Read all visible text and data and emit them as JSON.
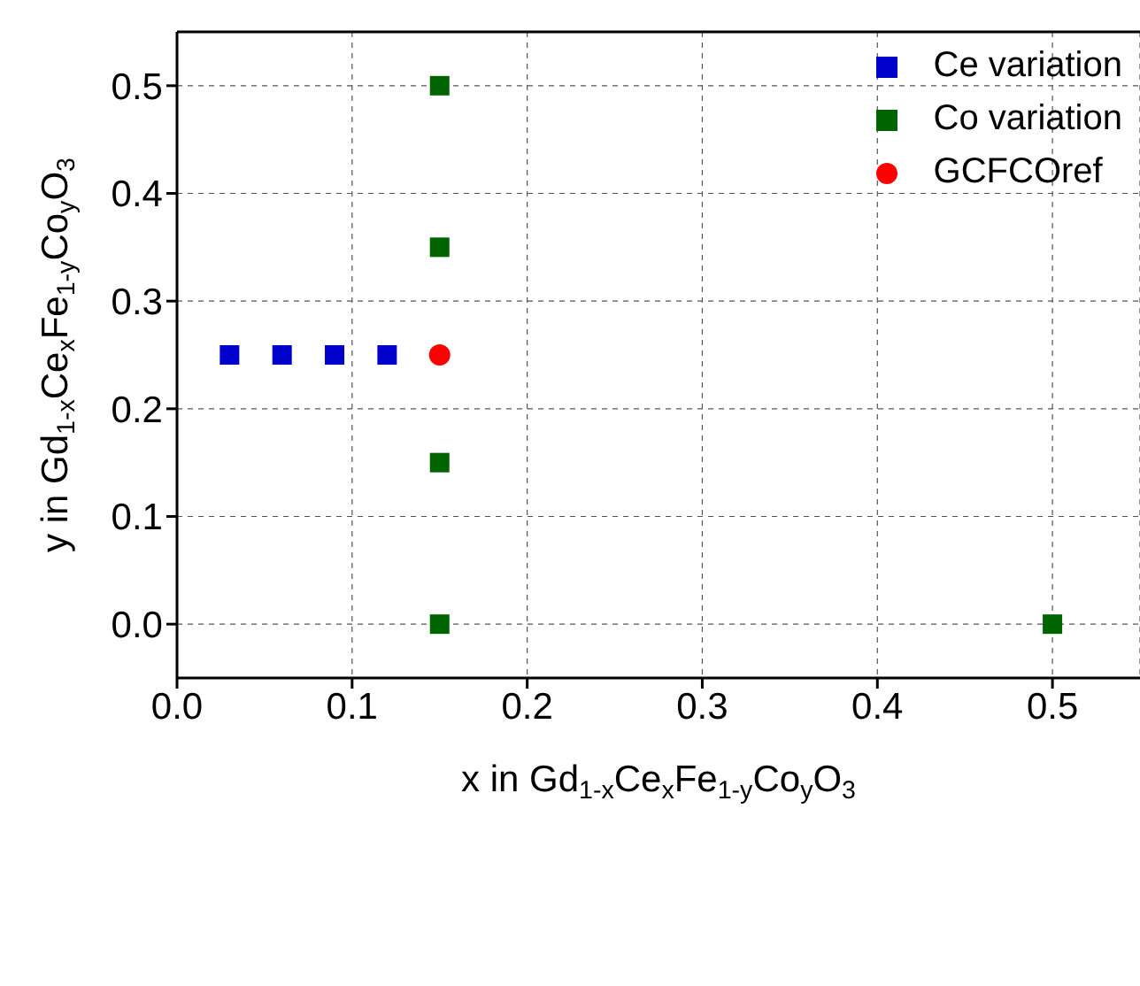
{
  "chart_data": {
    "type": "scatter",
    "xlabel": "x in Gd$_{1-x}$Ce$_{x}$Fe$_{1-y}$Co$_{y}$O$_{3}$",
    "ylabel": "y in Gd$_{1-x}$Ce$_{x}$Fe$_{1-y}$Co$_{y}$O$_{3}$",
    "xlim": [
      0,
      0.55
    ],
    "xticks": [
      {
        "value": 0,
        "label": "0.0"
      },
      0.1,
      0.2,
      0.3,
      0.4,
      0.5
    ],
    "ylim": [
      -0.05,
      0.55
    ],
    "yticks": [
      {
        "value": 0,
        "label": "0.0"
      },
      0.1,
      0.2,
      0.3,
      0.4,
      0.5
    ],
    "grid": true,
    "legend": "top right",
    "series": [
      {
        "name": "GCFCOref",
        "color": "#ff0000",
        "marker": "circle",
        "x": [
          0.15
        ],
        "values": [
          0.25
        ]
      },
      {
        "name": "Ce variation",
        "color": "#0000cc",
        "marker": "square",
        "x": [
          0.03,
          0.06,
          0.09,
          0.12
        ],
        "values": [
          0.25,
          0.25,
          0.25,
          0.25
        ]
      },
      {
        "name": "Co variation",
        "color": "#006400",
        "marker": "square",
        "x": [
          0.15,
          0.15,
          0.15,
          0.15,
          0.5
        ],
        "values": [
          0.5,
          0.35,
          0.15,
          0,
          0
        ]
      }
    ]
  }
}
